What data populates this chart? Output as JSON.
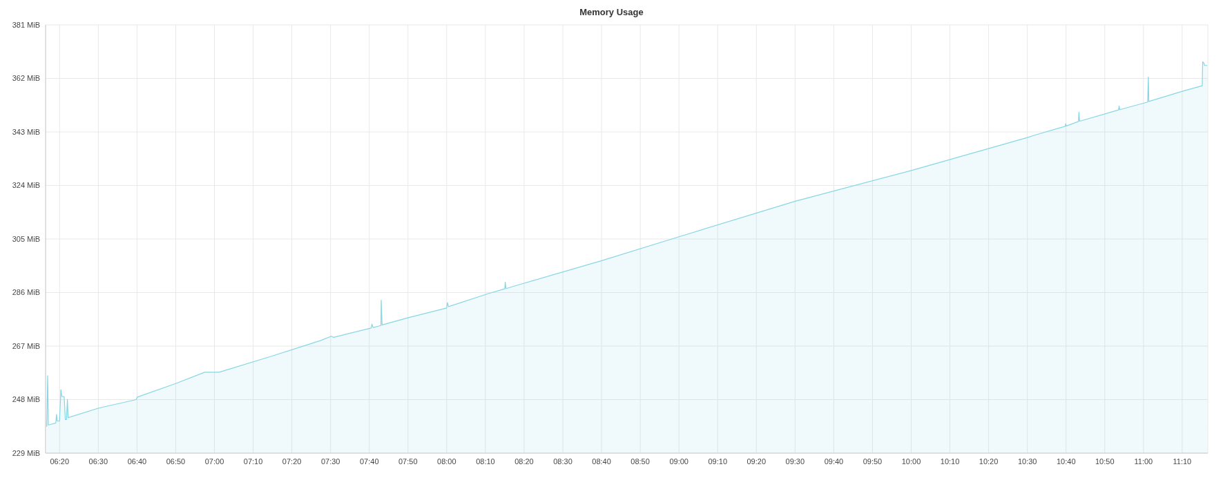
{
  "chart_data": {
    "type": "area",
    "title": "Memory Usage",
    "x": [
      6.278,
      6.282,
      6.285,
      6.317,
      6.32,
      6.323,
      6.333,
      6.339,
      6.343,
      6.353,
      6.358,
      6.363,
      6.367,
      6.37,
      6.502,
      6.663,
      6.668,
      6.833,
      6.958,
      7.02,
      7.25,
      7.458,
      7.503,
      7.513,
      7.675,
      7.678,
      7.683,
      7.717,
      7.718,
      7.722,
      7.835,
      8.0,
      8.003,
      8.008,
      8.182,
      8.25,
      8.252,
      8.255,
      8.333,
      8.667,
      9.0,
      9.5,
      10.0,
      10.5,
      10.533,
      10.663,
      10.665,
      10.668,
      10.72,
      10.722,
      10.725,
      10.893,
      10.895,
      10.898,
      11.018,
      11.021,
      11.023,
      11.17,
      11.253,
      11.255,
      11.26,
      11.263,
      11.275
    ],
    "series": [
      {
        "color": "#86d6e3",
        "values": [
          238.4,
          256.5,
          239.0,
          239.7,
          242.7,
          240.4,
          240.4,
          251.5,
          249.1,
          249.1,
          240.9,
          240.9,
          248.1,
          241.6,
          245.0,
          248.0,
          248.9,
          253.7,
          257.7,
          257.7,
          263.5,
          269.0,
          270.5,
          270.1,
          273.4,
          274.8,
          273.6,
          274.3,
          283.3,
          274.5,
          277.1,
          280.5,
          282.4,
          281.0,
          285.7,
          287.3,
          289.7,
          287.4,
          289.3,
          297.3,
          305.8,
          318.4,
          329.3,
          341.0,
          341.9,
          345.0,
          345.9,
          345.1,
          346.7,
          350.0,
          346.8,
          350.8,
          352.2,
          350.9,
          353.6,
          362.5,
          353.8,
          357.5,
          359.4,
          367.9,
          367.5,
          366.6,
          366.6
        ]
      }
    ],
    "xlim": [
      6.273,
      11.277
    ],
    "xticks": [
      {
        "value": 6.3333,
        "label": "06:20"
      },
      {
        "value": 6.5,
        "label": "06:30"
      },
      {
        "value": 6.6667,
        "label": "06:40"
      },
      {
        "value": 6.8333,
        "label": "06:50"
      },
      {
        "value": 7,
        "label": "07:00"
      },
      {
        "value": 7.1667,
        "label": "07:10"
      },
      {
        "value": 7.3333,
        "label": "07:20"
      },
      {
        "value": 7.5,
        "label": "07:30"
      },
      {
        "value": 7.6667,
        "label": "07:40"
      },
      {
        "value": 7.8333,
        "label": "07:50"
      },
      {
        "value": 8,
        "label": "08:00"
      },
      {
        "value": 8.1667,
        "label": "08:10"
      },
      {
        "value": 8.3333,
        "label": "08:20"
      },
      {
        "value": 8.5,
        "label": "08:30"
      },
      {
        "value": 8.6667,
        "label": "08:40"
      },
      {
        "value": 8.8333,
        "label": "08:50"
      },
      {
        "value": 9,
        "label": "09:00"
      },
      {
        "value": 9.1667,
        "label": "09:10"
      },
      {
        "value": 9.3333,
        "label": "09:20"
      },
      {
        "value": 9.5,
        "label": "09:30"
      },
      {
        "value": 9.6667,
        "label": "09:40"
      },
      {
        "value": 9.8333,
        "label": "09:50"
      },
      {
        "value": 10,
        "label": "10:00"
      },
      {
        "value": 10.1667,
        "label": "10:10"
      },
      {
        "value": 10.3333,
        "label": "10:20"
      },
      {
        "value": 10.5,
        "label": "10:30"
      },
      {
        "value": 10.6667,
        "label": "10:40"
      },
      {
        "value": 10.8333,
        "label": "10:50"
      },
      {
        "value": 11,
        "label": "11:00"
      },
      {
        "value": 11.1667,
        "label": "11:10"
      }
    ],
    "ylim": [
      229,
      381
    ],
    "yticks": [
      {
        "value": 229,
        "label": "229 MiB"
      },
      {
        "value": 248,
        "label": "248 MiB"
      },
      {
        "value": 267,
        "label": "267 MiB"
      },
      {
        "value": 286,
        "label": "286 MiB"
      },
      {
        "value": 305,
        "label": "305 MiB"
      },
      {
        "value": 324,
        "label": "324 MiB"
      },
      {
        "value": 343,
        "label": "343 MiB"
      },
      {
        "value": 362,
        "label": "362 MiB"
      },
      {
        "value": 381,
        "label": "381 MiB"
      }
    ],
    "grid": true,
    "line_style": "solid"
  }
}
